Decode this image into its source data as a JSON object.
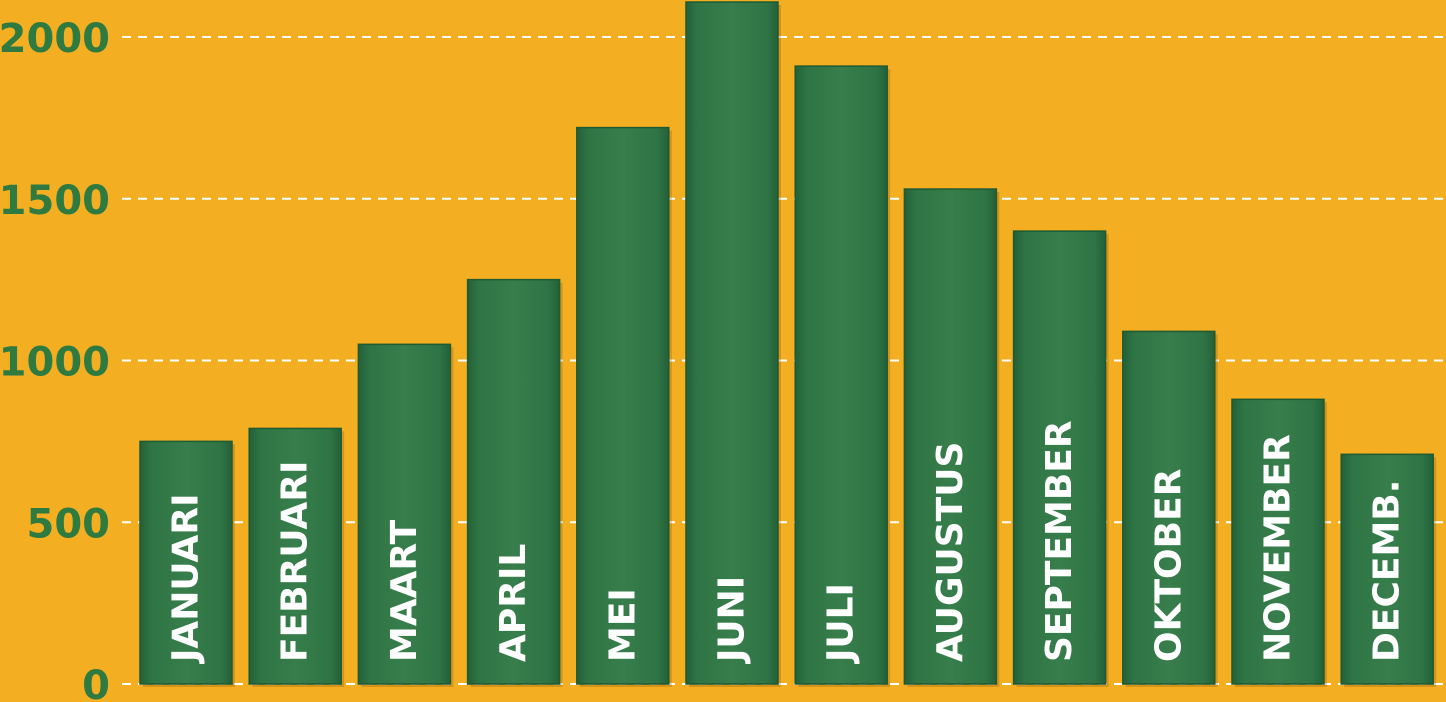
{
  "chart_data": {
    "type": "bar",
    "categories": [
      "JANUARI",
      "FEBRUARI",
      "MAART",
      "APRIL",
      "MEI",
      "JUNI",
      "JULI",
      "AUGUSTUS",
      "SEPTEMBER",
      "OKTOBER",
      "NOVEMBER",
      "DECEMB."
    ],
    "values": [
      750,
      790,
      1050,
      1250,
      1720,
      2110,
      1910,
      1530,
      1400,
      1090,
      880,
      710
    ],
    "ylim": [
      0,
      2000
    ],
    "yticks": [
      "0",
      "500",
      "1000",
      "1500",
      "2000"
    ],
    "grid": true,
    "title": "",
    "xlabel": "",
    "ylabel": ""
  },
  "colors": {
    "background": "#F4AE22",
    "bar": "#347A49",
    "bar_edge": "#1F5A30",
    "tick_text": "#2E7A41",
    "label_text": "#FFFFFF",
    "grid": "#FFFFFF"
  }
}
